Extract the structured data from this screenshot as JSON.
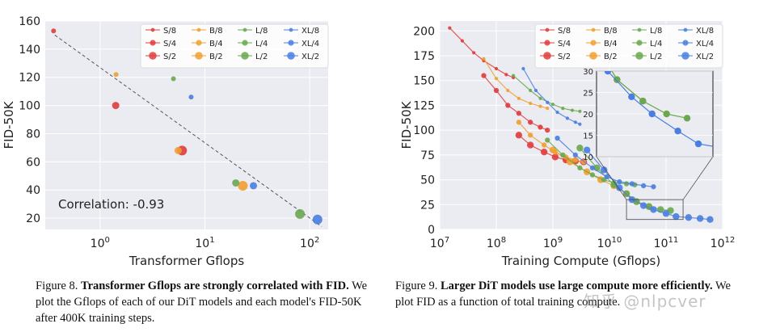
{
  "colors": {
    "S": "#e03c3c",
    "B": "#f0a030",
    "L": "#6aa84f",
    "XL": "#4a7ee0",
    "grid": "#ffffff",
    "panel": "#ebebf2",
    "trend": "#555555"
  },
  "legend_labels": [
    "S/8",
    "B/8",
    "L/8",
    "XL/8",
    "S/4",
    "B/4",
    "L/4",
    "XL/4",
    "S/2",
    "B/2",
    "L/2",
    "XL/2"
  ],
  "figure8": {
    "caption_number": "Figure 8.",
    "caption_bold": "Transformer Gflops are strongly correlated with FID.",
    "caption_rest": "We plot the Gflops of each of our DiT models and each model's FID-50K after 400K training steps.",
    "annotation": "Correlation: -0.93"
  },
  "figure9": {
    "caption_number": "Figure 9.",
    "caption_bold": "Larger DiT models use large compute more efficiently.",
    "caption_rest": "We plot FID as a function of total training compute."
  },
  "watermark": "知乎 @nlpcver",
  "chart_data": [
    {
      "type": "scatter",
      "xlabel": "Transformer Gflops",
      "ylabel": "FID-50K",
      "xscale": "log",
      "xlim": [
        0.3,
        150
      ],
      "ylim": [
        12,
        160
      ],
      "yticks": [
        20,
        40,
        60,
        80,
        100,
        120,
        140,
        160
      ],
      "xticks": [
        "10^0",
        "10^1",
        "10^2"
      ],
      "grid": true,
      "legend": "top-right",
      "annotation": "Correlation: -0.93",
      "trendline": [
        [
          0.37,
          150
        ],
        [
          130,
          14
        ]
      ],
      "points": [
        {
          "name": "S/8",
          "x": 0.36,
          "y": 153
        },
        {
          "name": "S/4",
          "x": 1.41,
          "y": 100
        },
        {
          "name": "S/2",
          "x": 6.06,
          "y": 68
        },
        {
          "name": "B/8",
          "x": 1.42,
          "y": 122
        },
        {
          "name": "B/4",
          "x": 5.56,
          "y": 68
        },
        {
          "name": "B/2",
          "x": 23.01,
          "y": 43
        },
        {
          "name": "L/8",
          "x": 5.01,
          "y": 119
        },
        {
          "name": "L/4",
          "x": 19.7,
          "y": 45
        },
        {
          "name": "L/2",
          "x": 80.71,
          "y": 23
        },
        {
          "name": "XL/8",
          "x": 7.39,
          "y": 106
        },
        {
          "name": "XL/4",
          "x": 29.05,
          "y": 43
        },
        {
          "name": "XL/2",
          "x": 118.64,
          "y": 19
        }
      ]
    },
    {
      "type": "line",
      "xlabel": "Training Compute (Gflops)",
      "ylabel": "FID-50K",
      "xscale": "log",
      "xlim": [
        10000000.0,
        1000000000000.0
      ],
      "ylim": [
        0,
        210
      ],
      "yticks": [
        0,
        25,
        50,
        75,
        100,
        125,
        150,
        175,
        200
      ],
      "xticks": [
        "10^7",
        "10^8",
        "10^9",
        "10^10",
        "10^11",
        "10^12"
      ],
      "grid": true,
      "legend": "top-right",
      "inset": {
        "xlim": [
          20000000000.0,
          200000000000.0
        ],
        "ylim": [
          10,
          30
        ],
        "yticks": [
          10,
          15,
          20,
          25,
          30
        ]
      },
      "series": [
        {
          "name": "S/8",
          "x": [
            15000000.0,
            25000000.0,
            40000000.0,
            60000000.0,
            100000000.0,
            150000000.0,
            200000000.0
          ],
          "y": [
            203,
            190,
            178,
            170,
            162,
            156,
            153
          ]
        },
        {
          "name": "S/4",
          "x": [
            60000000.0,
            100000000.0,
            160000000.0,
            250000000.0,
            400000000.0,
            600000000.0,
            800000000.0
          ],
          "y": [
            155,
            140,
            125,
            117,
            108,
            103,
            100
          ]
        },
        {
          "name": "S/2",
          "x": [
            250000000.0,
            400000000.0,
            700000000.0,
            1100000000.0,
            1700000000.0,
            2500000000.0,
            3500000000.0
          ],
          "y": [
            95,
            85,
            78,
            73,
            70,
            69,
            68
          ]
        },
        {
          "name": "B/8",
          "x": [
            60000000.0,
            100000000.0,
            160000000.0,
            250000000.0,
            400000000.0,
            600000000.0,
            800000000.0
          ],
          "y": [
            172,
            152,
            140,
            132,
            127,
            124,
            122
          ]
        },
        {
          "name": "B/4",
          "x": [
            250000000.0,
            400000000.0,
            700000000.0,
            1100000000.0,
            1700000000.0,
            2500000000.0,
            3500000000.0
          ],
          "y": [
            108,
            95,
            85,
            78,
            73,
            70,
            68
          ]
        },
        {
          "name": "B/2",
          "x": [
            1000000000.0,
            2000000000.0,
            4000000000.0,
            7000000000.0,
            12000000000.0,
            20000000000.0,
            30000000000.0,
            50000000000.0
          ],
          "y": [
            80,
            68,
            58,
            50,
            44,
            36,
            28,
            23
          ]
        },
        {
          "name": "L/8",
          "x": [
            200000000.0,
            400000000.0,
            600000000.0,
            1000000000.0,
            1500000000.0,
            2200000000.0,
            3000000000.0
          ],
          "y": [
            155,
            140,
            132,
            126,
            122,
            120,
            119
          ]
        },
        {
          "name": "L/4",
          "x": [
            800000000.0,
            1500000000.0,
            3000000000.0,
            5000000000.0,
            8000000000.0,
            12000000000.0,
            20000000000.0,
            28000000000.0
          ],
          "y": [
            90,
            75,
            62,
            55,
            50,
            47,
            46,
            45
          ]
        },
        {
          "name": "L/2",
          "x": [
            3000000000.0,
            6000000000.0,
            12000000000.0,
            20000000000.0,
            30000000000.0,
            50000000000.0,
            80000000000.0,
            120000000000.0
          ],
          "y": [
            82,
            62,
            45,
            36,
            28,
            23,
            20,
            19
          ]
        },
        {
          "name": "XL/8",
          "x": [
            300000000.0,
            500000000.0,
            800000000.0,
            1200000000.0,
            1800000000.0,
            2500000000.0,
            3000000000.0
          ],
          "y": [
            162,
            140,
            128,
            118,
            112,
            108,
            106
          ]
        },
        {
          "name": "XL/4",
          "x": [
            1200000000.0,
            2500000000.0,
            5000000000.0,
            9000000000.0,
            15000000000.0,
            25000000000.0,
            40000000000.0,
            60000000000.0
          ],
          "y": [
            92,
            75,
            62,
            53,
            48,
            46,
            44,
            43
          ]
        },
        {
          "name": "XL/2",
          "x": [
            4000000000.0,
            8000000000.0,
            15000000000.0,
            25000000000.0,
            40000000000.0,
            60000000000.0,
            100000000000.0,
            150000000000.0,
            250000000000.0,
            400000000000.0,
            600000000000.0
          ],
          "y": [
            80,
            60,
            42,
            30,
            24,
            20,
            16,
            13,
            12,
            11,
            10
          ]
        }
      ]
    }
  ]
}
